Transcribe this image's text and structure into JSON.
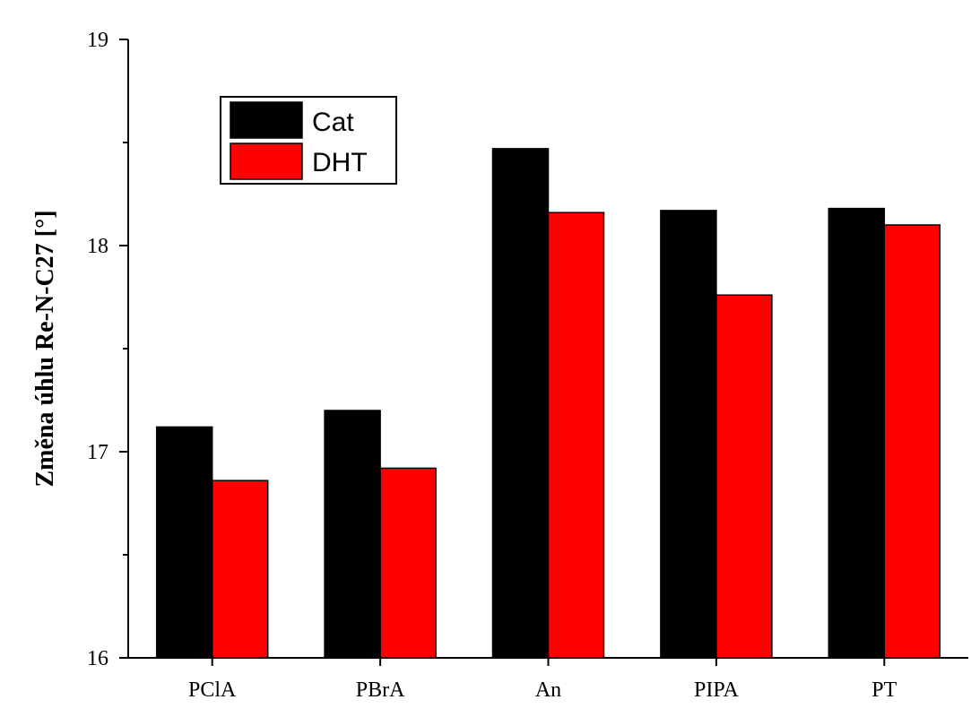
{
  "chart_data": {
    "type": "bar",
    "title": "",
    "xlabel": "",
    "ylabel": "Změna úhlu Re-N-C27 [°]",
    "categories": [
      "PClA",
      "PBrA",
      "An",
      "PIPA",
      "PT"
    ],
    "series": [
      {
        "name": "Cat",
        "color": "#000000",
        "values": [
          17.12,
          17.2,
          18.47,
          18.17,
          18.18
        ]
      },
      {
        "name": "DHT",
        "color": "#ff0000",
        "values": [
          16.86,
          16.92,
          18.16,
          17.76,
          18.1
        ]
      }
    ],
    "ylim": [
      16,
      19
    ],
    "yticks": [
      "16",
      "17",
      "18",
      "19"
    ],
    "grid": false,
    "legend_position": "top-left"
  }
}
